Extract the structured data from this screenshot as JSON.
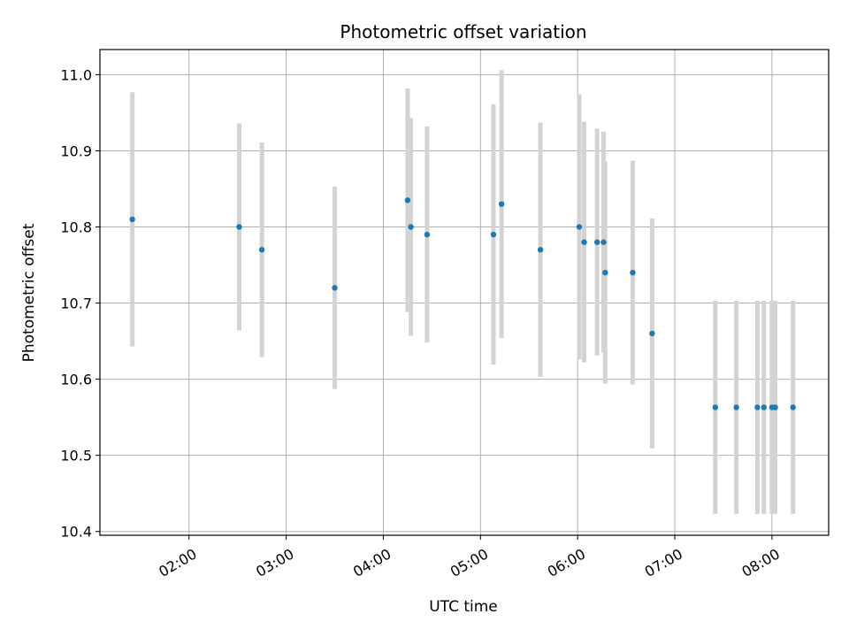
{
  "chart_data": {
    "type": "scatter",
    "title": "Photometric offset variation",
    "xlabel": "UTC time",
    "ylabel": "Photometric offset",
    "xlim": [
      "01:05",
      "08:35"
    ],
    "ylim": [
      10.395,
      11.033
    ],
    "x_ticks": [
      "02:00",
      "03:00",
      "04:00",
      "05:00",
      "06:00",
      "07:00",
      "08:00"
    ],
    "y_ticks": [
      "10.4",
      "10.5",
      "10.6",
      "10.7",
      "10.8",
      "10.9",
      "11.0"
    ],
    "grid": true,
    "legend": "none",
    "colors": {
      "marker": "#1f77b4",
      "errorbar": "#d3d3d3",
      "grid": "#b0b0b0"
    },
    "points": [
      {
        "t": "01:25",
        "y": 10.81,
        "err": 0.167
      },
      {
        "t": "02:31",
        "y": 10.8,
        "err": 0.136
      },
      {
        "t": "02:45",
        "y": 10.77,
        "err": 0.141
      },
      {
        "t": "03:30",
        "y": 10.72,
        "err": 0.133
      },
      {
        "t": "04:15",
        "y": 10.835,
        "err": 0.147
      },
      {
        "t": "04:17",
        "y": 10.8,
        "err": 0.143
      },
      {
        "t": "04:27",
        "y": 10.79,
        "err": 0.142
      },
      {
        "t": "05:08",
        "y": 10.79,
        "err": 0.171
      },
      {
        "t": "05:13",
        "y": 10.83,
        "err": 0.176
      },
      {
        "t": "05:37",
        "y": 10.77,
        "err": 0.167
      },
      {
        "t": "06:01",
        "y": 10.8,
        "err": 0.174
      },
      {
        "t": "06:04",
        "y": 10.78,
        "err": 0.158
      },
      {
        "t": "06:12",
        "y": 10.78,
        "err": 0.149
      },
      {
        "t": "06:16",
        "y": 10.78,
        "err": 0.145
      },
      {
        "t": "06:17",
        "y": 10.74,
        "err": 0.146
      },
      {
        "t": "06:34",
        "y": 10.74,
        "err": 0.147
      },
      {
        "t": "06:46",
        "y": 10.66,
        "err": 0.151
      },
      {
        "t": "07:25",
        "y": 10.563,
        "err": 0.14
      },
      {
        "t": "07:38",
        "y": 10.563,
        "err": 0.14
      },
      {
        "t": "07:51",
        "y": 10.563,
        "err": 0.14
      },
      {
        "t": "07:55",
        "y": 10.563,
        "err": 0.14
      },
      {
        "t": "08:00",
        "y": 10.563,
        "err": 0.14
      },
      {
        "t": "08:02",
        "y": 10.563,
        "err": 0.14
      },
      {
        "t": "08:13",
        "y": 10.563,
        "err": 0.14
      }
    ]
  }
}
